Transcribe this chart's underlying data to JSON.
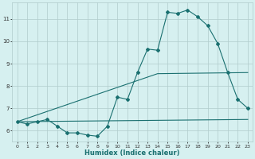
{
  "xlabel": "Humidex (Indice chaleur)",
  "bg_color": "#d6f0f0",
  "grid_color": "#b0cccc",
  "line_color": "#1a7070",
  "xlim": [
    -0.5,
    23.5
  ],
  "ylim": [
    5.5,
    11.75
  ],
  "yticks": [
    6,
    7,
    8,
    9,
    10,
    11
  ],
  "xticks": [
    0,
    1,
    2,
    3,
    4,
    5,
    6,
    7,
    8,
    9,
    10,
    11,
    12,
    13,
    14,
    15,
    16,
    17,
    18,
    19,
    20,
    21,
    22,
    23
  ],
  "series1_x": [
    0,
    1,
    2,
    3,
    4,
    5,
    6,
    7,
    8,
    9,
    10,
    11,
    12,
    13,
    14,
    15,
    16,
    17,
    18,
    19,
    20,
    21,
    22,
    23
  ],
  "series1_y": [
    6.4,
    6.3,
    6.4,
    6.5,
    6.2,
    5.9,
    5.9,
    5.8,
    5.75,
    6.2,
    7.5,
    7.4,
    8.6,
    9.65,
    9.6,
    11.3,
    11.25,
    11.4,
    11.1,
    10.7,
    9.9,
    8.6,
    7.4,
    7.0
  ],
  "series2_x": [
    0,
    23
  ],
  "series2_y": [
    6.4,
    6.5
  ],
  "series3_x": [
    0,
    14,
    23
  ],
  "series3_y": [
    6.4,
    8.55,
    8.6
  ]
}
